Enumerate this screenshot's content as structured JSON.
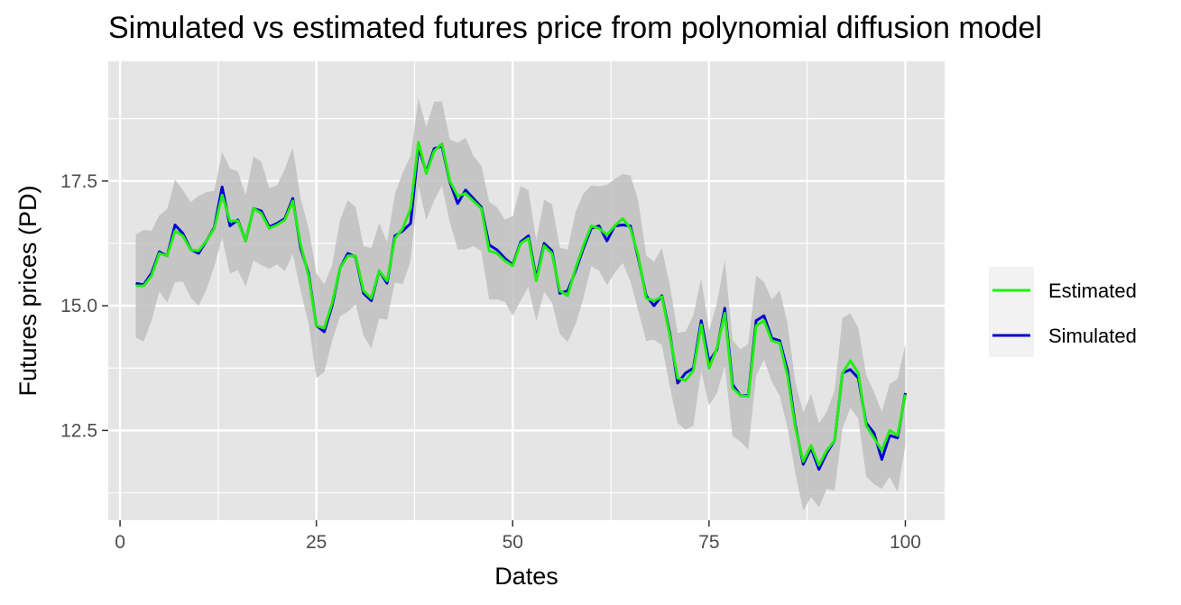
{
  "chart_data": {
    "type": "line",
    "title": "Simulated vs estimated futures price from polynomial diffusion model",
    "xlabel": "Dates",
    "ylabel": "Futures prices (PD)",
    "xlim": [
      -1.5,
      105
    ],
    "ylim": [
      10.7,
      19.9
    ],
    "x_ticks": [
      0,
      25,
      50,
      75,
      100
    ],
    "x_tick_labels": [
      "0",
      "25",
      "50",
      "75",
      "100"
    ],
    "y_ticks": [
      12.5,
      15.0,
      17.5
    ],
    "y_tick_labels": [
      "12.5",
      "15.0",
      "17.5"
    ],
    "grid": true,
    "legend_position": "right",
    "colors": {
      "panel": "#e5e5e5",
      "grid": "#ffffff",
      "band": "#bdbdbd",
      "estimated": "#22ee11",
      "simulated": "#0000cc",
      "legend_bg": "#f2f2f2"
    },
    "x": [
      2,
      3,
      4,
      5,
      6,
      7,
      8,
      9,
      10,
      11,
      12,
      13,
      14,
      15,
      16,
      17,
      18,
      19,
      20,
      21,
      22,
      23,
      24,
      25,
      26,
      27,
      28,
      29,
      30,
      31,
      32,
      33,
      34,
      35,
      36,
      37,
      38,
      39,
      40,
      41,
      42,
      43,
      44,
      45,
      46,
      47,
      48,
      49,
      50,
      51,
      52,
      53,
      54,
      55,
      56,
      57,
      58,
      59,
      60,
      61,
      62,
      63,
      64,
      65,
      66,
      67,
      68,
      69,
      70,
      71,
      72,
      73,
      74,
      75,
      76,
      77,
      78,
      79,
      80,
      81,
      82,
      83,
      84,
      85,
      86,
      87,
      88,
      89,
      90,
      91,
      92,
      93,
      94,
      95,
      96,
      97,
      98,
      99,
      100
    ],
    "series": [
      {
        "name": "Simulated",
        "values": [
          15.45,
          15.42,
          15.65,
          16.08,
          16.0,
          16.62,
          16.45,
          16.13,
          16.05,
          16.3,
          16.57,
          17.38,
          16.6,
          16.72,
          16.3,
          16.95,
          16.9,
          16.58,
          16.65,
          16.75,
          17.15,
          16.15,
          15.65,
          14.6,
          14.48,
          15.0,
          15.75,
          16.05,
          15.98,
          15.25,
          15.1,
          15.7,
          15.45,
          16.4,
          16.5,
          16.65,
          18.18,
          17.68,
          18.15,
          18.2,
          17.48,
          17.05,
          17.32,
          17.15,
          16.98,
          16.22,
          16.12,
          15.95,
          15.82,
          16.28,
          16.4,
          15.55,
          16.25,
          16.1,
          15.25,
          15.3,
          15.7,
          16.15,
          16.55,
          16.6,
          16.3,
          16.6,
          16.62,
          16.6,
          15.95,
          15.2,
          15.0,
          15.2,
          14.45,
          13.45,
          13.65,
          13.75,
          14.7,
          13.88,
          14.12,
          14.95,
          13.42,
          13.2,
          13.2,
          14.7,
          14.8,
          14.35,
          14.3,
          13.7,
          12.6,
          11.82,
          12.15,
          11.72,
          12.05,
          12.3,
          13.65,
          13.72,
          13.55,
          12.65,
          12.45,
          11.92,
          12.4,
          12.35,
          13.25
        ]
      },
      {
        "name": "Estimated",
        "values": [
          15.4,
          15.4,
          15.6,
          16.05,
          16.0,
          16.5,
          16.4,
          16.12,
          16.1,
          16.3,
          16.55,
          17.22,
          16.7,
          16.7,
          16.3,
          16.95,
          16.85,
          16.55,
          16.62,
          16.72,
          17.1,
          16.22,
          15.6,
          14.6,
          14.55,
          15.05,
          15.75,
          16.0,
          16.0,
          15.3,
          15.15,
          15.7,
          15.5,
          16.35,
          16.55,
          16.95,
          18.28,
          17.65,
          18.1,
          18.25,
          17.5,
          17.2,
          17.25,
          17.1,
          16.95,
          16.1,
          16.05,
          15.9,
          15.8,
          16.25,
          16.35,
          15.5,
          16.2,
          16.05,
          15.3,
          15.2,
          15.75,
          16.2,
          16.6,
          16.55,
          16.42,
          16.6,
          16.75,
          16.55,
          16.0,
          15.15,
          15.1,
          15.18,
          14.4,
          13.55,
          13.5,
          13.7,
          14.62,
          13.75,
          14.15,
          14.85,
          13.35,
          13.2,
          13.18,
          14.6,
          14.7,
          14.3,
          14.25,
          13.6,
          12.55,
          11.88,
          12.2,
          11.8,
          12.1,
          12.3,
          13.65,
          13.9,
          13.65,
          12.6,
          12.35,
          12.1,
          12.5,
          12.4,
          13.22
        ]
      }
    ],
    "legend": [
      "Estimated",
      "Simulated"
    ]
  }
}
